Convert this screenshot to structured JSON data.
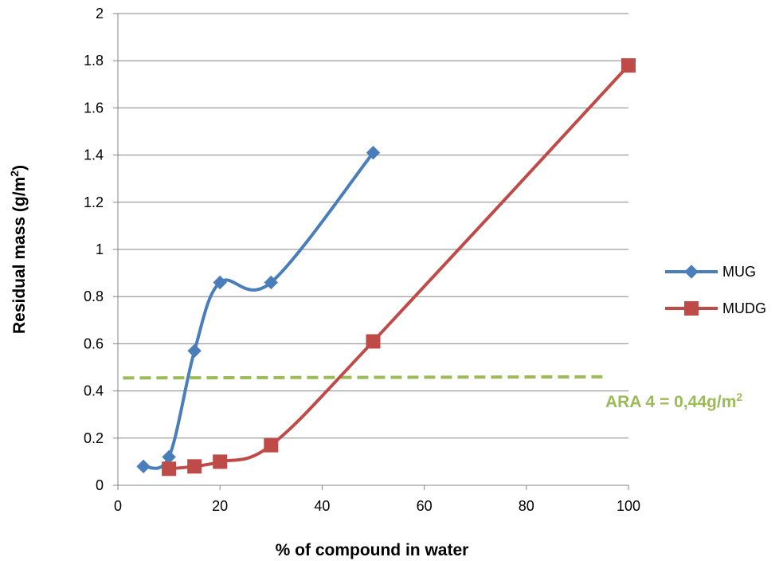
{
  "chart_data": {
    "type": "line",
    "title": "",
    "xlabel": "% of compound in water",
    "ylabel_main": "Residual mass (g/m",
    "ylabel_sup": "2",
    "ylabel_close": ")",
    "xlim": [
      0,
      100
    ],
    "ylim": [
      0,
      2
    ],
    "x_ticks": [
      0,
      20,
      40,
      60,
      80,
      100
    ],
    "y_ticks": [
      0,
      0.2,
      0.4,
      0.6,
      0.8,
      1,
      1.2,
      1.4,
      1.6,
      1.8,
      2
    ],
    "grid": "horizontal",
    "legend_position": "right",
    "series": [
      {
        "name": "MUG",
        "color": "#4a7ebb",
        "marker": "diamond",
        "smooth": true,
        "x": [
          5,
          10,
          15,
          20,
          30,
          50
        ],
        "y": [
          0.08,
          0.12,
          0.57,
          0.86,
          0.86,
          1.41
        ]
      },
      {
        "name": "MUDG",
        "color": "#be4b48",
        "marker": "square",
        "smooth": true,
        "x": [
          10,
          15,
          20,
          30,
          50,
          100
        ],
        "y": [
          0.07,
          0.08,
          0.1,
          0.17,
          0.61,
          1.78
        ]
      }
    ],
    "reference_line": {
      "color": "#9bbb59",
      "style": "dashed",
      "x": [
        1,
        96
      ],
      "y": [
        0.455,
        0.46
      ],
      "label_main": "ARA 4 = 0,44g/m",
      "label_sup": "2"
    }
  }
}
